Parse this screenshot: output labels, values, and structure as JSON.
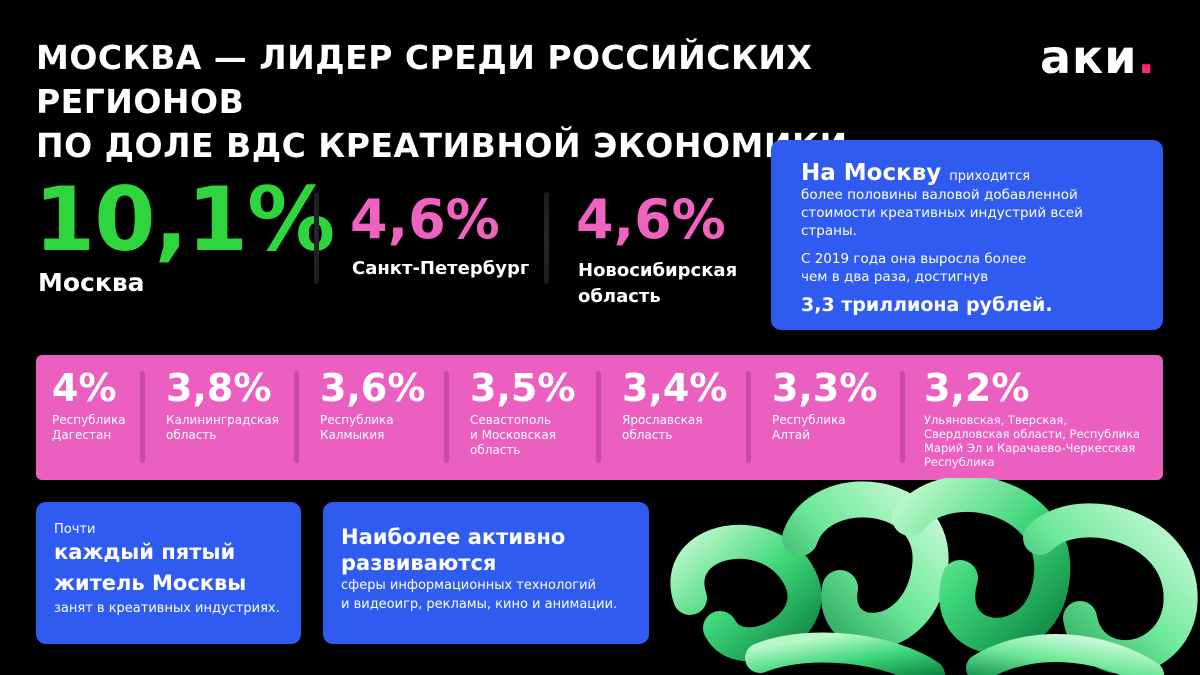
{
  "title": {
    "line1": "МОСКВА — ЛИДЕР СРЕДИ РОССИЙСКИХ РЕГИОНОВ",
    "line2": "ПО ДОЛЕ ВДС КРЕАТИВНОЙ ЭКОНОМИКИ"
  },
  "logo": {
    "text": "аки",
    "dot": "."
  },
  "top_stats": {
    "moscow": {
      "value": "10,1%",
      "label": "Москва"
    },
    "spb": {
      "value": "4,6%",
      "label": "Санкт-Петербург"
    },
    "nsk": {
      "value": "4,6%",
      "label_line1": "Новосибирская",
      "label_line2": "область"
    }
  },
  "moscow_card": {
    "head": "На Москву",
    "head_rest": "приходится",
    "line1": "более половины валовой добавленной",
    "line2": "стоимости креативных индустрий всей страны.",
    "line3": "С 2019 года она выросла более",
    "line4": "чем в два раза, достигнув",
    "strong": "3,3 триллиона рублей."
  },
  "regions": [
    {
      "value": "4%",
      "lines": [
        "Республика",
        "Дагестан"
      ]
    },
    {
      "value": "3,8%",
      "lines": [
        "Калининградская",
        "область"
      ]
    },
    {
      "value": "3,6%",
      "lines": [
        "Республика",
        "Калмыкия"
      ]
    },
    {
      "value": "3,5%",
      "lines": [
        "Севастополь",
        "и Московская",
        "область"
      ]
    },
    {
      "value": "3,4%",
      "lines": [
        "Ярославская",
        "область"
      ]
    },
    {
      "value": "3,3%",
      "lines": [
        "Республика",
        "Алтай"
      ]
    },
    {
      "value": "3,2%",
      "lines": [
        "Ульяновская, Тверская,",
        "Свердловская области, Республика",
        "Марий Эл и Карачаево-Черкесская",
        "Республика"
      ]
    }
  ],
  "fifth_card": {
    "small": "Почти",
    "bold1": "каждый пятый",
    "bold2": "житель Москвы",
    "small2": "занят в креативных индустриях."
  },
  "active_card": {
    "bold1": "Наиболее активно",
    "bold2": "развиваются",
    "small1": "сферы информационных технологий",
    "small2": "и видеоигр, рекламы, кино и анимации."
  },
  "colors": {
    "green": "#2fd53c",
    "pink": "#f062c0",
    "band": "#ea5fc0",
    "blue": "#2f5bf0"
  }
}
